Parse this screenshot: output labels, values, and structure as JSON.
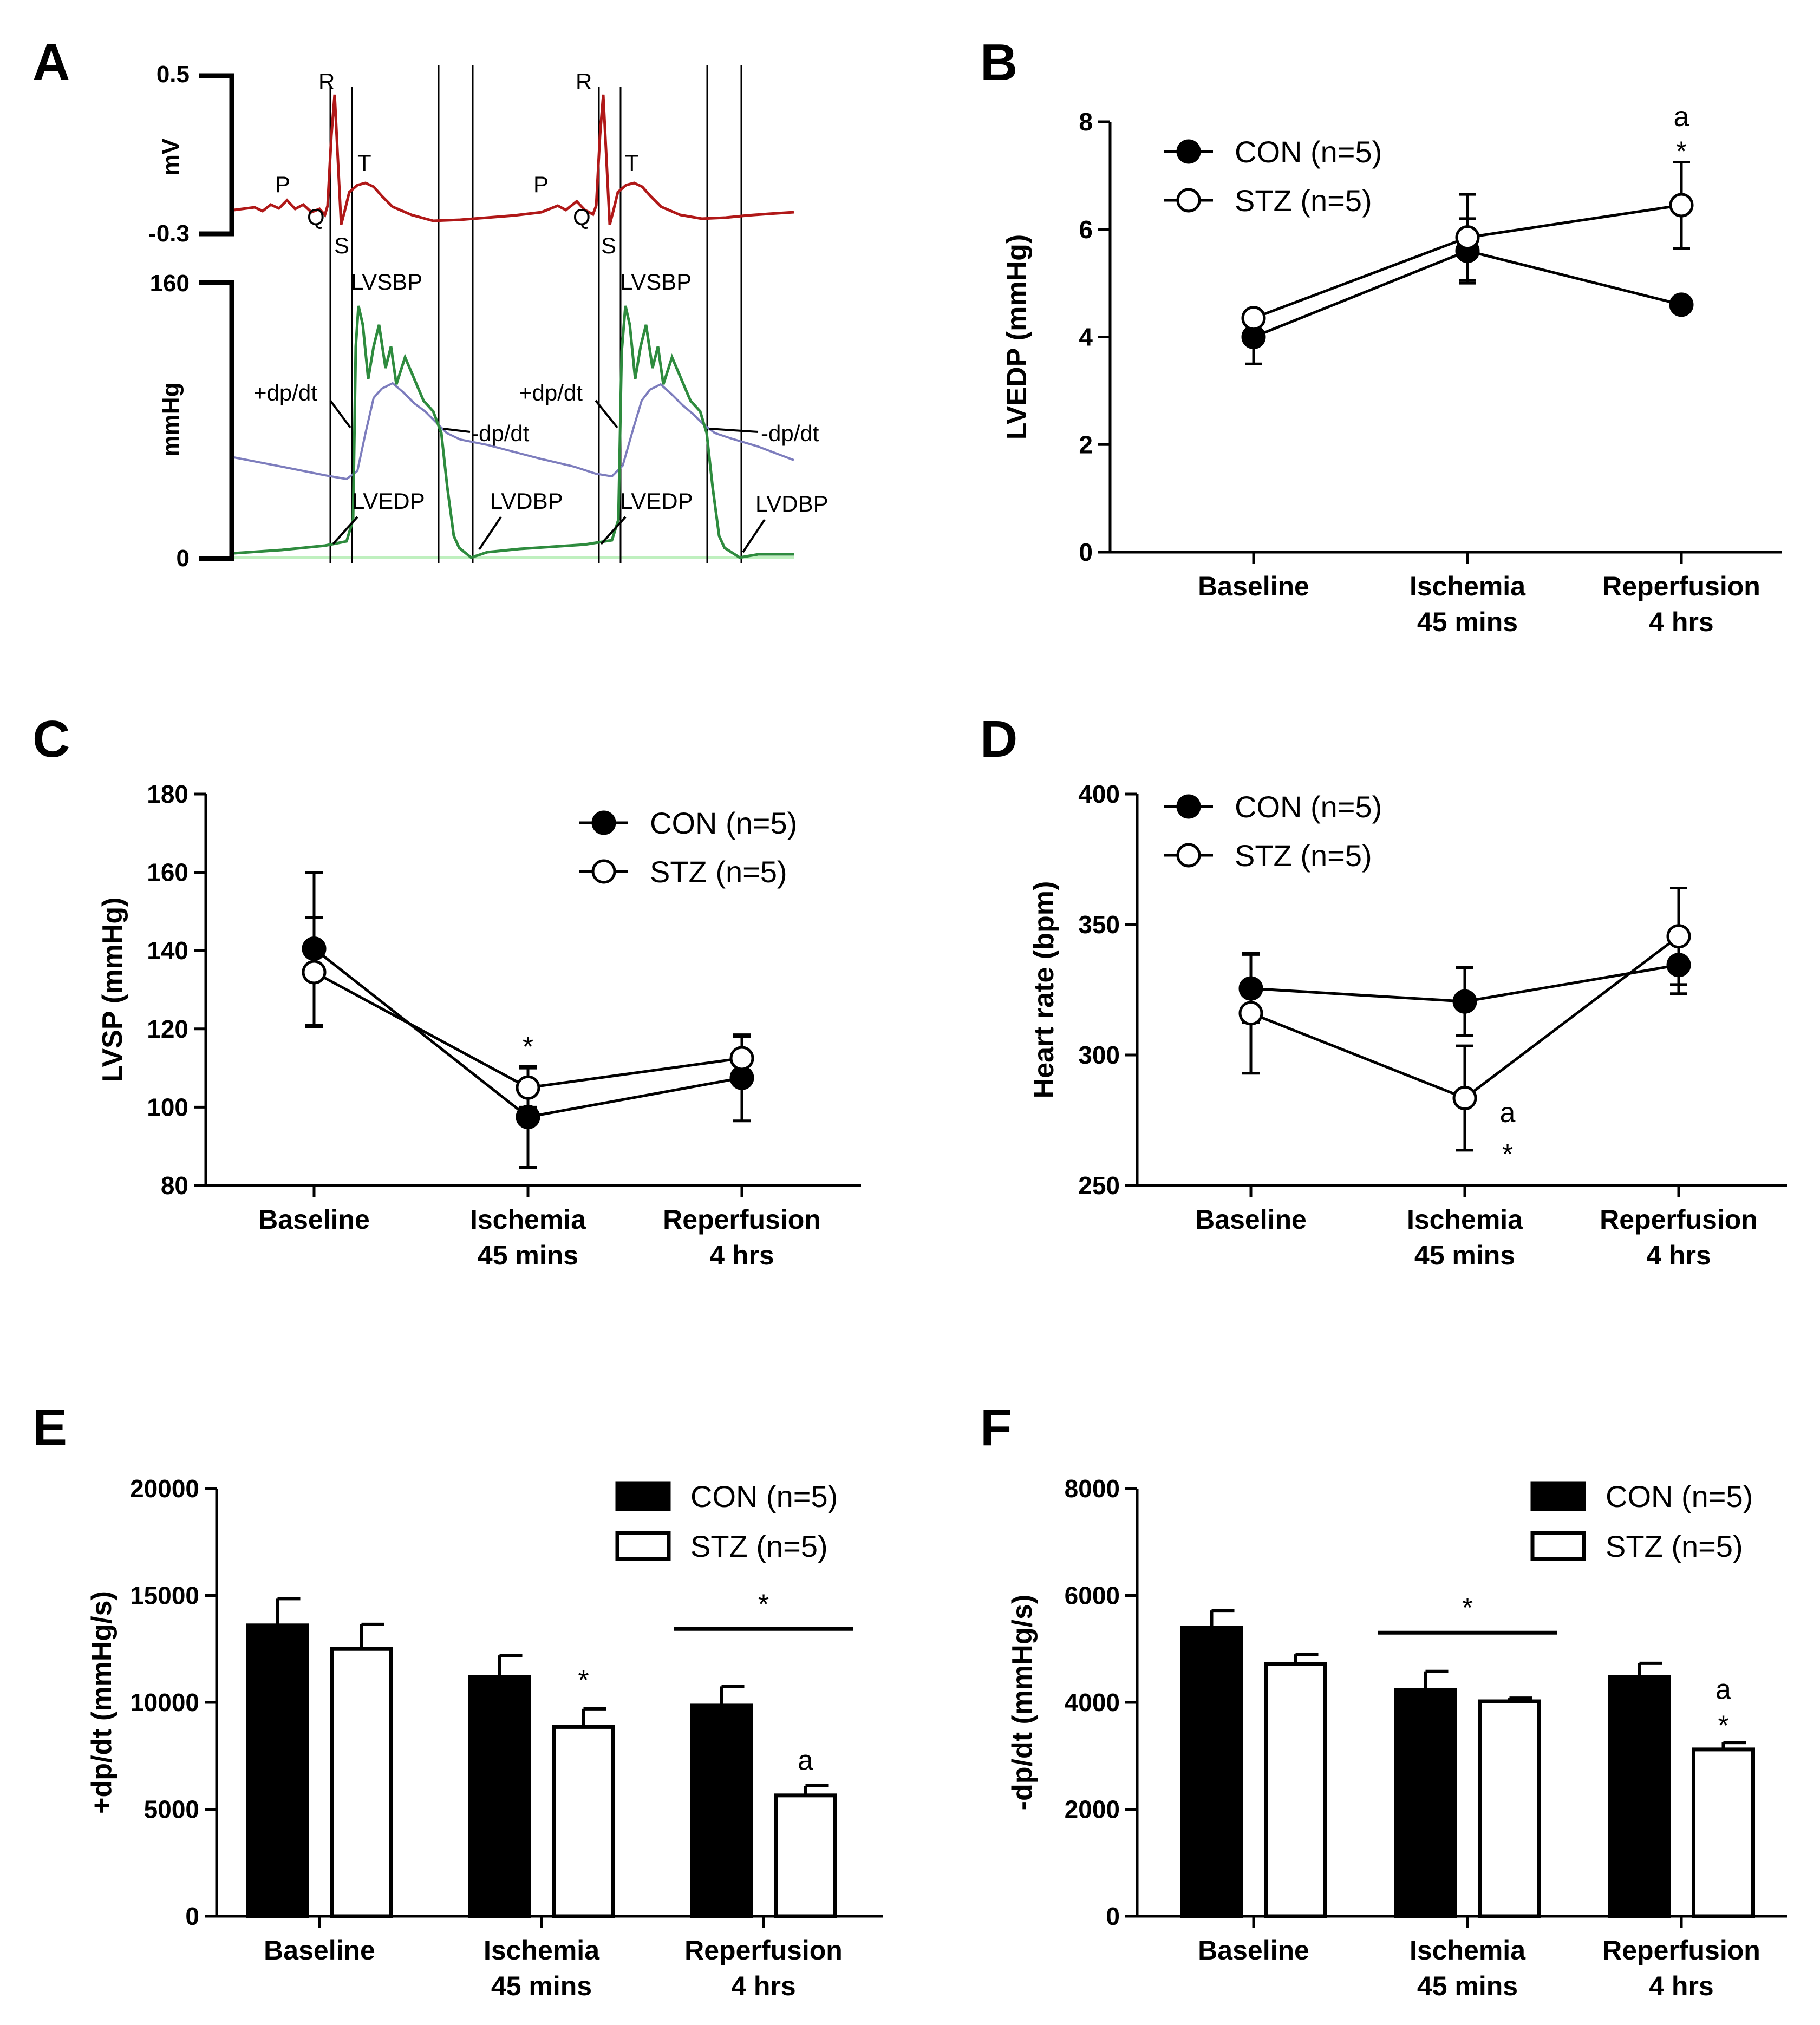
{
  "panel_labels": {
    "A": "A",
    "B": "B",
    "C": "C",
    "D": "D",
    "E": "E",
    "F": "F"
  },
  "legend": {
    "con": "CON (n=5)",
    "stz": "STZ (n=5)"
  },
  "colors": {
    "ecg": "#b01818",
    "pressure": "#2e8b3e",
    "derivative": "#7d7dbd",
    "baseline": "#bff0bf"
  },
  "panelA": {
    "ecg_axis_label": "mV",
    "ecg_ticks": [
      "0.5",
      "-0.3"
    ],
    "pressure_axis_label": "mmHg",
    "pressure_ticks": [
      "160",
      "0"
    ],
    "wave_labels": [
      "P",
      "R",
      "T",
      "Q",
      "S"
    ],
    "beat_labels": [
      "LVSBP",
      "+dp/dt",
      "-dp/dt",
      "LVEDP",
      "LVDBP"
    ]
  },
  "chart_data": [
    {
      "id": "B",
      "type": "line",
      "categories": [
        "Baseline",
        "Ischemia\n45 mins",
        "Reperfusion\n4 hrs"
      ],
      "ylabel": "LVEDP (mmHg)",
      "ylim": [
        0,
        8
      ],
      "yticks": [
        "0",
        "2",
        "4",
        "6",
        "8"
      ],
      "yticks_values": [
        0,
        2,
        4,
        6,
        8
      ],
      "legend_position": "top-left",
      "series": [
        {
          "name": "CON (n=5)",
          "marker": "filled",
          "values": [
            4.0,
            5.6,
            4.6
          ],
          "errors": [
            0.5,
            0.6,
            0.1
          ]
        },
        {
          "name": "STZ (n=5)",
          "marker": "open",
          "values": [
            4.35,
            5.85,
            6.45
          ],
          "errors": [
            0.1,
            0.8,
            0.8
          ]
        }
      ],
      "annotations": [
        {
          "text": "a",
          "category": 2,
          "value": 8.1
        },
        {
          "text": "*",
          "category": 2,
          "value": 7.45
        }
      ]
    },
    {
      "id": "C",
      "type": "line",
      "categories": [
        "Baseline",
        "Ischemia\n45 mins",
        "Reperfusion\n4 hrs"
      ],
      "ylabel": "LVSP (mmHg)",
      "ylim": [
        80,
        180
      ],
      "yticks": [
        "80",
        "100",
        "120",
        "140",
        "160",
        "180"
      ],
      "yticks_values": [
        80,
        100,
        120,
        140,
        160,
        180
      ],
      "legend_position": "top-right",
      "series": [
        {
          "name": "CON (n=5)",
          "marker": "filled",
          "values": [
            140.5,
            97.5,
            107.5
          ],
          "errors": [
            19.5,
            13.0,
            11.0
          ]
        },
        {
          "name": "STZ (n=5)",
          "marker": "open",
          "values": [
            134.5,
            105.0,
            112.5
          ],
          "errors": [
            14.0,
            5.0,
            5.5
          ]
        }
      ],
      "annotations": [
        {
          "text": "*",
          "category": 1,
          "value": 115.5
        }
      ]
    },
    {
      "id": "D",
      "type": "line",
      "categories": [
        "Baseline",
        "Ischemia\n45 mins",
        "Reperfusion\n4 hrs"
      ],
      "ylabel": "Heart rate (bpm)",
      "ylim": [
        250,
        400
      ],
      "yticks": [
        "250",
        "300",
        "350",
        "400"
      ],
      "yticks_values": [
        250,
        300,
        350,
        400
      ],
      "legend_position": "top-left",
      "series": [
        {
          "name": "CON (n=5)",
          "marker": "filled",
          "values": [
            325.5,
            320.5,
            334.5
          ],
          "errors": [
            13.0,
            13.0,
            11.0
          ]
        },
        {
          "name": "STZ (n=5)",
          "marker": "open",
          "values": [
            316.0,
            283.5,
            345.5
          ],
          "errors": [
            23.0,
            20.0,
            18.5
          ]
        }
      ],
      "annotations": [
        {
          "text": "a",
          "category": 1.2,
          "value": 278
        },
        {
          "text": "*",
          "category": 1.2,
          "value": 262
        }
      ]
    },
    {
      "id": "E",
      "type": "bar",
      "categories": [
        "Baseline",
        "Ischemia\n45 mins",
        "Reperfusion\n4 hrs"
      ],
      "ylabel": "+dp/dt (mmHg/s)",
      "ylim": [
        0,
        20000
      ],
      "yticks": [
        "0",
        "5000",
        "10000",
        "15000",
        "20000"
      ],
      "yticks_values": [
        0,
        5000,
        10000,
        15000,
        20000
      ],
      "legend_position": "top-right",
      "series": [
        {
          "name": "CON (n=5)",
          "fill": "solid",
          "values": [
            13600,
            11200,
            9850
          ],
          "errors": [
            1250,
            1000,
            900
          ]
        },
        {
          "name": "STZ (n=5)",
          "fill": "open",
          "values": [
            12500,
            8850,
            5650
          ],
          "errors": [
            1150,
            850,
            450
          ]
        }
      ],
      "annotations": [
        {
          "text": "*",
          "category": 1,
          "series": 1,
          "value": 11050
        },
        {
          "text": "a",
          "category": 2,
          "series": 1,
          "value": 7300
        },
        {
          "text": "*",
          "category": 2,
          "series": null,
          "value": 14600,
          "bracket": true
        }
      ]
    },
    {
      "id": "F",
      "type": "bar",
      "categories": [
        "Baseline",
        "Ischemia\n45 mins",
        "Reperfusion\n4 hrs"
      ],
      "ylabel": "-dp/dt (mmHg/s)",
      "ylim": [
        0,
        8000
      ],
      "yticks": [
        "0",
        "2000",
        "4000",
        "6000",
        "8000"
      ],
      "yticks_values": [
        0,
        2000,
        4000,
        6000,
        8000
      ],
      "legend_position": "top-right",
      "series": [
        {
          "name": "CON (n=5)",
          "fill": "solid",
          "values": [
            5400,
            4230,
            4480
          ],
          "errors": [
            320,
            350,
            250
          ]
        },
        {
          "name": "STZ (n=5)",
          "fill": "open",
          "values": [
            4720,
            4020,
            3120
          ],
          "errors": [
            180,
            60,
            130
          ]
        }
      ],
      "annotations": [
        {
          "text": "a",
          "category": 2,
          "series": 1,
          "value": 4250
        },
        {
          "text": "*",
          "category": 2,
          "series": 1,
          "value": 3570
        },
        {
          "text": "*",
          "category": 1,
          "series": null,
          "value": 5770,
          "bracket": true
        }
      ]
    }
  ]
}
